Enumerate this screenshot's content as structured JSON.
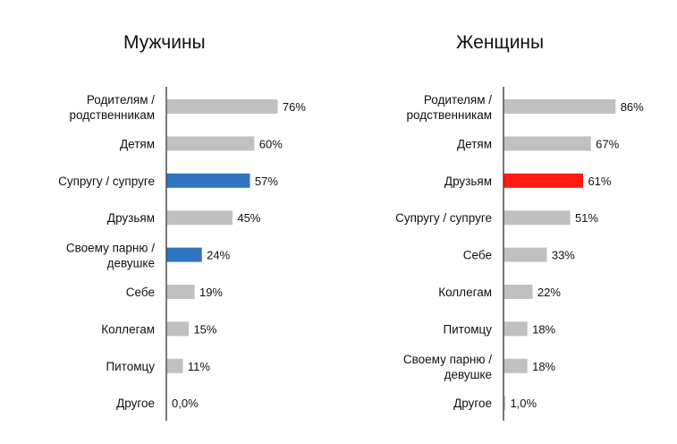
{
  "chart_data": [
    {
      "type": "bar",
      "orientation": "horizontal",
      "title": "Мужчины",
      "categories": [
        [
          "Родителям /",
          "родственникам"
        ],
        [
          "Детям"
        ],
        [
          "Супругу / супруге"
        ],
        [
          "Друзьям"
        ],
        [
          "Своему парню /",
          "девушке"
        ],
        [
          "Себе"
        ],
        [
          "Коллегам"
        ],
        [
          "Питомцу"
        ],
        [
          "Другое"
        ]
      ],
      "values": [
        76,
        60,
        57,
        45,
        24,
        19,
        15,
        11,
        0
      ],
      "value_labels": [
        "76%",
        "60%",
        "57%",
        "45%",
        "24%",
        "19%",
        "15%",
        "11%",
        "0,0%"
      ],
      "highlight_indices": [
        2,
        4
      ],
      "colors": {
        "default": "#c0c0c0",
        "highlight": "#2f74c0"
      },
      "xlim": [
        0,
        100
      ]
    },
    {
      "type": "bar",
      "orientation": "horizontal",
      "title": "Женщины",
      "categories": [
        [
          "Родителям /",
          "родственникам"
        ],
        [
          "Детям"
        ],
        [
          "Друзьям"
        ],
        [
          "Супругу / супруге"
        ],
        [
          "Себе"
        ],
        [
          "Коллегам"
        ],
        [
          "Питомцу"
        ],
        [
          "Своему парню /",
          "девушке"
        ],
        [
          "Другое"
        ]
      ],
      "values": [
        86,
        67,
        61,
        51,
        33,
        22,
        18,
        18,
        1
      ],
      "value_labels": [
        "86%",
        "67%",
        "61%",
        "51%",
        "33%",
        "22%",
        "18%",
        "18%",
        "1,0%"
      ],
      "highlight_indices": [
        2
      ],
      "colors": {
        "default": "#c0c0c0",
        "highlight": "#ff1a12"
      },
      "xlim": [
        0,
        100
      ]
    }
  ]
}
